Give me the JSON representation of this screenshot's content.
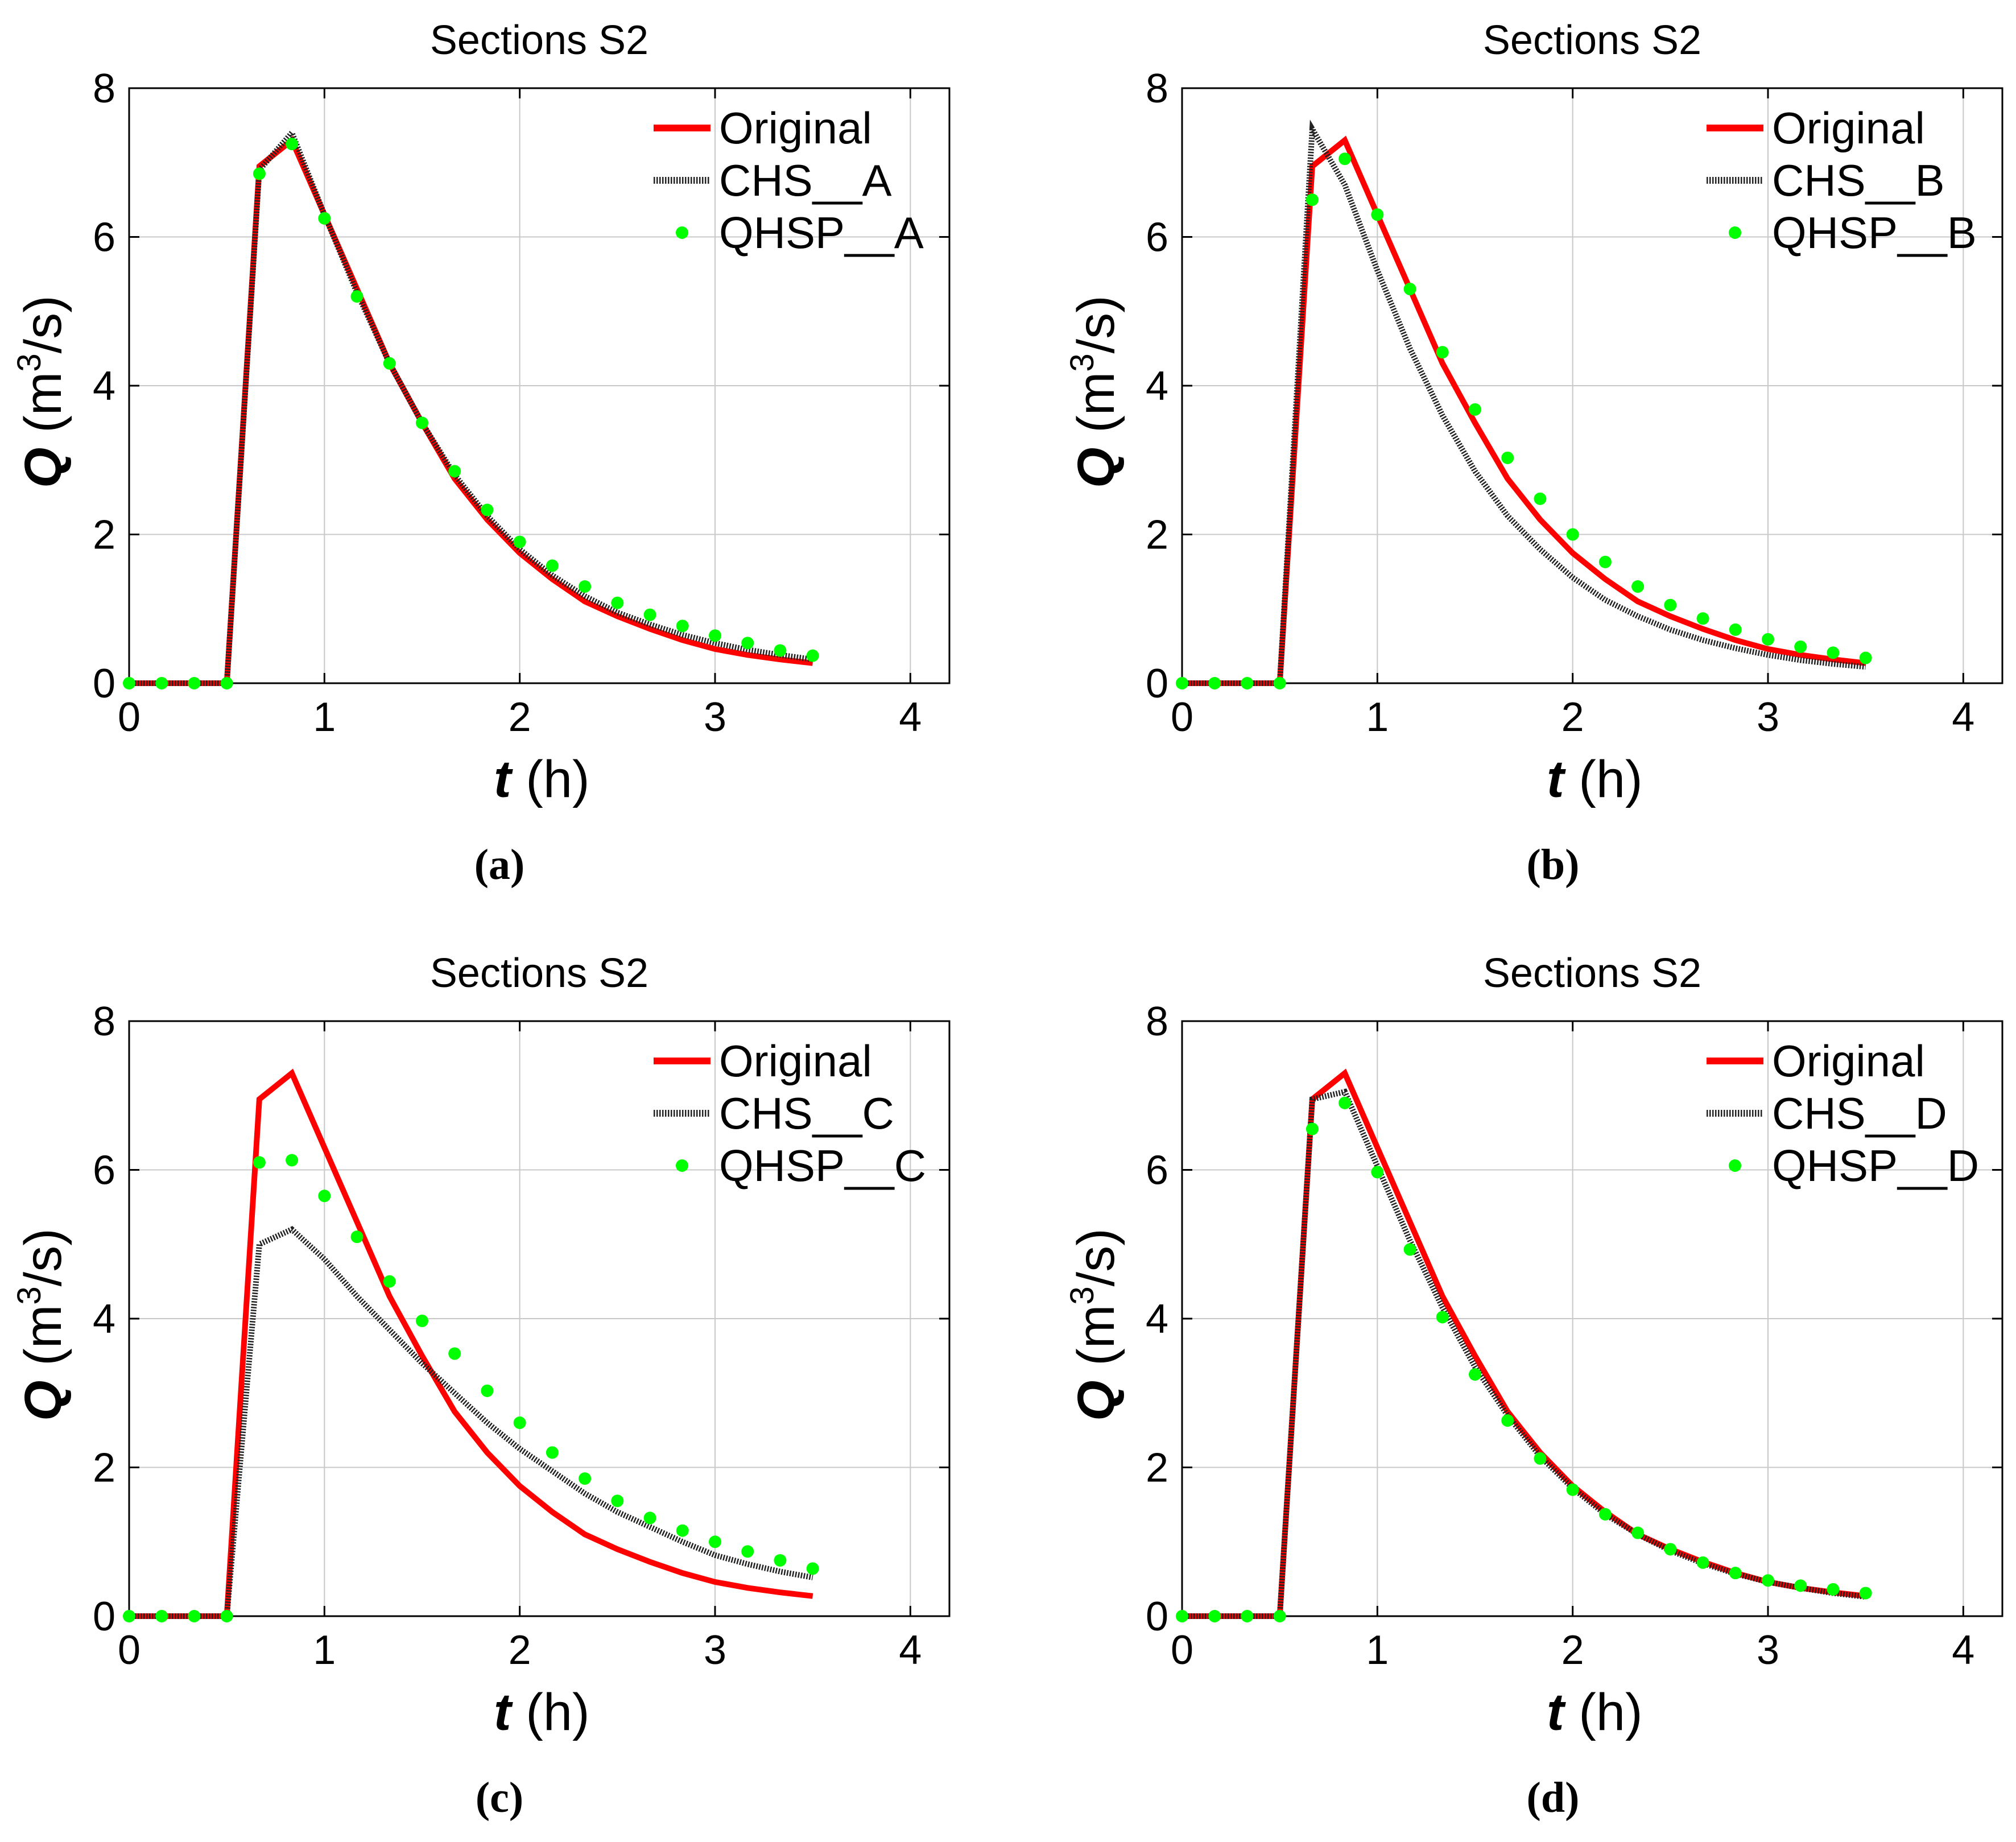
{
  "chart_data": [
    {
      "panel": "a",
      "caption": "(a)",
      "type": "line",
      "title": "Sections S2",
      "xlabel_var": "t",
      "xlabel_unit": "(h)",
      "ylabel_var": "Q",
      "ylabel_unit": "(m",
      "ylabel_exp": "3",
      "ylabel_tail": "/s)",
      "xlim": [
        0,
        4.2
      ],
      "ylim": [
        0,
        8
      ],
      "xticks": [
        0,
        1,
        2,
        3,
        4
      ],
      "yticks": [
        0,
        2,
        4,
        6,
        8
      ],
      "x": [
        0,
        0.1667,
        0.3333,
        0.5,
        0.6667,
        0.8333,
        1.0,
        1.1667,
        1.3333,
        1.5,
        1.6667,
        1.8333,
        2.0,
        2.1667,
        2.3333,
        2.5,
        2.6667,
        2.8333,
        3.0,
        3.1667,
        3.3333,
        3.5
      ],
      "series": [
        {
          "name": "Original",
          "style": "line-red",
          "values": [
            0,
            0,
            0,
            0,
            6.95,
            7.3,
            6.3,
            5.3,
            4.3,
            3.5,
            2.75,
            2.2,
            1.75,
            1.4,
            1.1,
            0.9,
            0.73,
            0.58,
            0.46,
            0.38,
            0.32,
            0.27
          ]
        },
        {
          "name": "CHS__A",
          "style": "line-dotted",
          "values": [
            0,
            0,
            0,
            0,
            6.9,
            7.4,
            6.3,
            5.25,
            4.3,
            3.5,
            2.8,
            2.25,
            1.8,
            1.45,
            1.17,
            0.95,
            0.79,
            0.65,
            0.54,
            0.45,
            0.38,
            0.32
          ]
        },
        {
          "name": "QHSP__A",
          "style": "markers-green",
          "values": [
            0,
            0,
            0,
            0,
            6.85,
            7.25,
            6.25,
            5.2,
            4.3,
            3.5,
            2.85,
            2.33,
            1.9,
            1.58,
            1.3,
            1.08,
            0.92,
            0.77,
            0.64,
            0.54,
            0.44,
            0.37
          ]
        }
      ]
    },
    {
      "panel": "b",
      "caption": "(b)",
      "type": "line",
      "title": "Sections S2",
      "xlabel_var": "t",
      "xlabel_unit": "(h)",
      "ylabel_var": "Q",
      "ylabel_unit": "(m",
      "ylabel_exp": "3",
      "ylabel_tail": "/s)",
      "xlim": [
        0,
        4.2
      ],
      "ylim": [
        0,
        8
      ],
      "xticks": [
        0,
        1,
        2,
        3,
        4
      ],
      "yticks": [
        0,
        2,
        4,
        6,
        8
      ],
      "x": [
        0,
        0.1667,
        0.3333,
        0.5,
        0.6667,
        0.8333,
        1.0,
        1.1667,
        1.3333,
        1.5,
        1.6667,
        1.8333,
        2.0,
        2.1667,
        2.3333,
        2.5,
        2.6667,
        2.8333,
        3.0,
        3.1667,
        3.3333,
        3.5
      ],
      "series": [
        {
          "name": "Original",
          "style": "line-red",
          "values": [
            0,
            0,
            0,
            0,
            6.95,
            7.3,
            6.3,
            5.3,
            4.3,
            3.5,
            2.75,
            2.2,
            1.75,
            1.4,
            1.1,
            0.9,
            0.73,
            0.58,
            0.46,
            0.38,
            0.32,
            0.27
          ]
        },
        {
          "name": "CHS__B",
          "style": "line-dotted",
          "values": [
            0,
            0,
            0,
            0,
            7.45,
            6.7,
            5.55,
            4.5,
            3.6,
            2.85,
            2.25,
            1.8,
            1.42,
            1.12,
            0.9,
            0.72,
            0.58,
            0.47,
            0.38,
            0.31,
            0.26,
            0.22
          ]
        },
        {
          "name": "QHSP__B",
          "style": "markers-green",
          "values": [
            0,
            0,
            0,
            0,
            6.5,
            7.05,
            6.3,
            5.3,
            4.45,
            3.68,
            3.03,
            2.48,
            2.0,
            1.63,
            1.3,
            1.05,
            0.87,
            0.72,
            0.59,
            0.49,
            0.41,
            0.34
          ]
        }
      ]
    },
    {
      "panel": "c",
      "caption": "(c)",
      "type": "line",
      "title": "Sections S2",
      "xlabel_var": "t",
      "xlabel_unit": "(h)",
      "ylabel_var": "Q",
      "ylabel_unit": "(m",
      "ylabel_exp": "3",
      "ylabel_tail": "/s)",
      "xlim": [
        0,
        4.2
      ],
      "ylim": [
        0,
        8
      ],
      "xticks": [
        0,
        1,
        2,
        3,
        4
      ],
      "yticks": [
        0,
        2,
        4,
        6,
        8
      ],
      "x": [
        0,
        0.1667,
        0.3333,
        0.5,
        0.6667,
        0.8333,
        1.0,
        1.1667,
        1.3333,
        1.5,
        1.6667,
        1.8333,
        2.0,
        2.1667,
        2.3333,
        2.5,
        2.6667,
        2.8333,
        3.0,
        3.1667,
        3.3333,
        3.5
      ],
      "series": [
        {
          "name": "Original",
          "style": "line-red",
          "values": [
            0,
            0,
            0,
            0,
            6.95,
            7.3,
            6.3,
            5.3,
            4.3,
            3.5,
            2.75,
            2.2,
            1.75,
            1.4,
            1.1,
            0.9,
            0.73,
            0.58,
            0.46,
            0.38,
            0.32,
            0.27
          ]
        },
        {
          "name": "CHS__C",
          "style": "line-dotted",
          "values": [
            0,
            0,
            0,
            0,
            5.0,
            5.2,
            4.8,
            4.3,
            3.85,
            3.4,
            3.0,
            2.6,
            2.25,
            1.95,
            1.65,
            1.4,
            1.2,
            1.0,
            0.82,
            0.7,
            0.6,
            0.52
          ]
        },
        {
          "name": "QHSP__C",
          "style": "markers-green",
          "values": [
            0,
            0,
            0,
            0,
            6.1,
            6.13,
            5.65,
            5.1,
            4.5,
            3.97,
            3.53,
            3.03,
            2.6,
            2.2,
            1.85,
            1.55,
            1.32,
            1.15,
            1.0,
            0.87,
            0.75,
            0.64
          ]
        }
      ]
    },
    {
      "panel": "d",
      "caption": "(d)",
      "type": "line",
      "title": "Sections S2",
      "xlabel_var": "t",
      "xlabel_unit": "(h)",
      "ylabel_var": "Q",
      "ylabel_unit": "(m",
      "ylabel_exp": "3",
      "ylabel_tail": "/s)",
      "xlim": [
        0,
        4.2
      ],
      "ylim": [
        0,
        8
      ],
      "xticks": [
        0,
        1,
        2,
        3,
        4
      ],
      "yticks": [
        0,
        2,
        4,
        6,
        8
      ],
      "x": [
        0,
        0.1667,
        0.3333,
        0.5,
        0.6667,
        0.8333,
        1.0,
        1.1667,
        1.3333,
        1.5,
        1.6667,
        1.8333,
        2.0,
        2.1667,
        2.3333,
        2.5,
        2.6667,
        2.8333,
        3.0,
        3.1667,
        3.3333,
        3.5
      ],
      "series": [
        {
          "name": "Original",
          "style": "line-red",
          "values": [
            0,
            0,
            0,
            0,
            6.95,
            7.3,
            6.3,
            5.3,
            4.3,
            3.5,
            2.75,
            2.2,
            1.75,
            1.4,
            1.1,
            0.9,
            0.73,
            0.58,
            0.46,
            0.38,
            0.32,
            0.27
          ]
        },
        {
          "name": "CHS__D",
          "style": "line-dotted",
          "values": [
            0,
            0,
            0,
            0,
            6.95,
            7.05,
            6.05,
            5.05,
            4.15,
            3.35,
            2.7,
            2.15,
            1.72,
            1.37,
            1.1,
            0.88,
            0.71,
            0.57,
            0.46,
            0.38,
            0.31,
            0.26
          ]
        },
        {
          "name": "QHSP__D",
          "style": "markers-green",
          "values": [
            0,
            0,
            0,
            0,
            6.55,
            6.9,
            5.97,
            4.93,
            4.02,
            3.25,
            2.63,
            2.12,
            1.7,
            1.37,
            1.12,
            0.9,
            0.72,
            0.58,
            0.48,
            0.41,
            0.36,
            0.31
          ]
        }
      ]
    }
  ],
  "colors": {
    "original": "#ff0000",
    "chs": "#222222",
    "qhsp": "#00ff00",
    "grid": "#c8c8c8"
  }
}
